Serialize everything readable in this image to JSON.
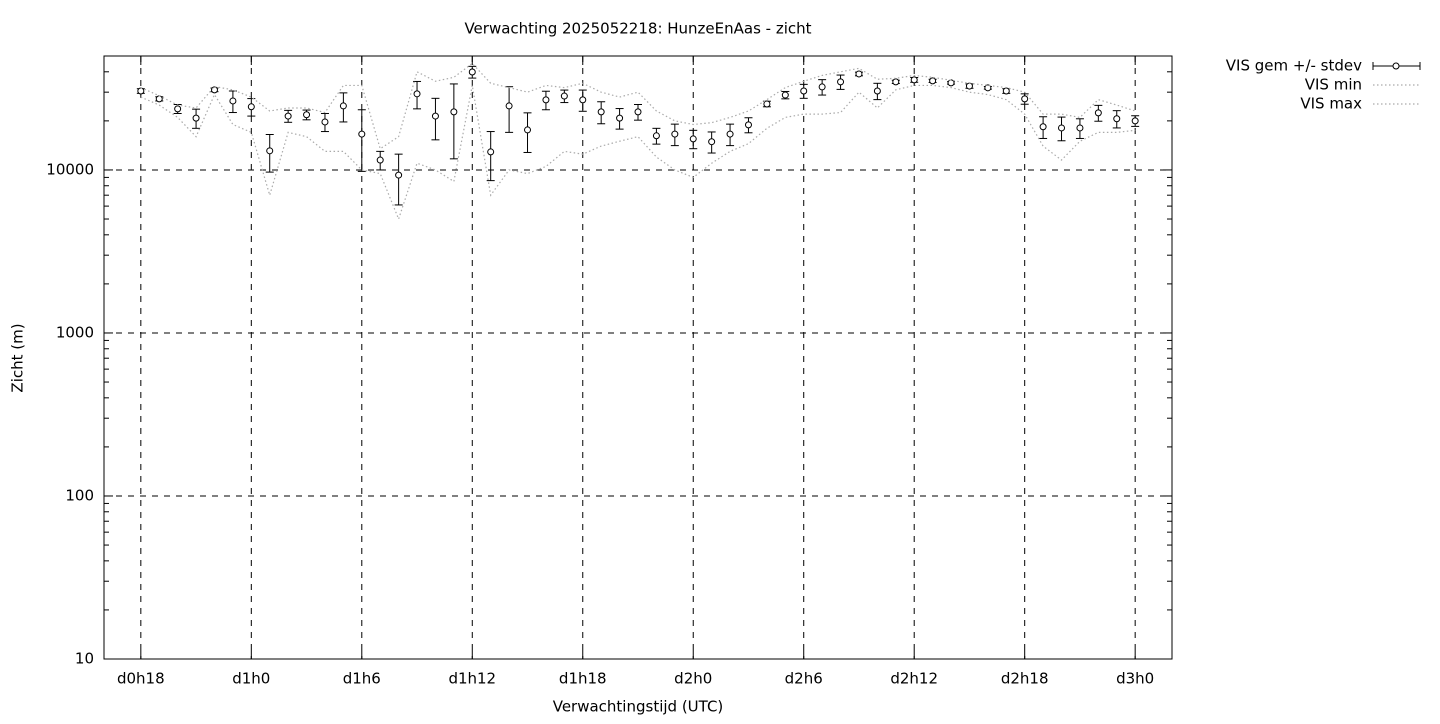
{
  "chart_data": {
    "type": "errorbar-line",
    "title": "Verwachting 2025052218: HunzeEnAas - zicht",
    "xlabel": "Verwachtingstijd (UTC)",
    "ylabel": "Zicht (m)",
    "x": [
      18,
      19,
      20,
      21,
      22,
      23,
      24,
      25,
      26,
      27,
      28,
      29,
      30,
      31,
      32,
      33,
      34,
      35,
      36,
      37,
      38,
      39,
      40,
      41,
      42,
      43,
      44,
      45,
      46,
      47,
      48,
      49,
      50,
      51,
      52,
      53,
      54,
      55,
      56,
      57,
      58,
      59,
      60,
      61,
      62,
      63,
      64,
      65,
      66,
      67,
      68,
      69,
      70,
      71,
      72
    ],
    "xlim": [
      16,
      74
    ],
    "xticks": [
      {
        "value": 18,
        "label": "d0h18"
      },
      {
        "value": 24,
        "label": "d1h0"
      },
      {
        "value": 30,
        "label": "d1h6"
      },
      {
        "value": 36,
        "label": "d1h12"
      },
      {
        "value": 42,
        "label": "d1h18"
      },
      {
        "value": 48,
        "label": "d2h0"
      },
      {
        "value": 54,
        "label": "d2h6"
      },
      {
        "value": 60,
        "label": "d2h12"
      },
      {
        "value": 66,
        "label": "d2h18"
      },
      {
        "value": 72,
        "label": "d3h0"
      }
    ],
    "ylim": [
      10,
      50000
    ],
    "yticks": [
      10,
      100,
      1000,
      10000
    ],
    "ylog": true,
    "grid": true,
    "legend": "outside-top-right",
    "series": [
      {
        "name": "VIS gem +/- stdev",
        "color": "#000000",
        "style": "errorbars",
        "values": [
          30500,
          27300,
          23700,
          20800,
          31000,
          26500,
          24400,
          13100,
          21400,
          21800,
          19700,
          24700,
          16600,
          11500,
          9300,
          29300,
          21400,
          22700,
          39900,
          12900,
          24700,
          17600,
          26900,
          28400,
          26900,
          22700,
          20800,
          22700,
          16200,
          16600,
          15500,
          14900,
          16600,
          18900,
          25400,
          28800,
          30500,
          32300,
          34700,
          38800,
          30500,
          34700,
          35700,
          35200,
          34200,
          32700,
          31900,
          30500,
          27300,
          18400,
          18100,
          18100,
          22400,
          20600,
          20000
        ],
        "errors": [
          1000,
          800,
          1500,
          2800,
          800,
          4000,
          3000,
          3400,
          1800,
          1500,
          2500,
          5000,
          6800,
          1500,
          3200,
          5600,
          6100,
          11000,
          3300,
          4300,
          7700,
          4800,
          3500,
          2500,
          4000,
          3500,
          3000,
          2500,
          1800,
          2500,
          2000,
          2200,
          2500,
          2000,
          1000,
          1500,
          3000,
          3500,
          3500,
          1000,
          3500,
          800,
          1200,
          800,
          600,
          1000,
          600,
          1000,
          2000,
          2800,
          3000,
          2500,
          2500,
          2500,
          1500
        ]
      },
      {
        "name": "VIS min",
        "color": "#aaaaaa",
        "style": "dotted",
        "values": [
          28000,
          25000,
          21000,
          16000,
          29000,
          19000,
          17000,
          7000,
          17000,
          16000,
          13000,
          13000,
          10000,
          9500,
          5000,
          11000,
          10000,
          8500,
          33000,
          7000,
          10000,
          9500,
          10500,
          13000,
          12500,
          14000,
          15000,
          16000,
          12000,
          10000,
          9000,
          11000,
          13000,
          14500,
          18000,
          21000,
          22000,
          22000,
          22500,
          30000,
          24000,
          31000,
          33000,
          33000,
          32000,
          30000,
          29000,
          27000,
          22000,
          14000,
          11500,
          15000,
          17000,
          17000,
          17500
        ]
      },
      {
        "name": "VIS max",
        "color": "#aaaaaa",
        "style": "dotted",
        "values": [
          32000,
          28500,
          25000,
          24000,
          32500,
          31000,
          28000,
          23000,
          24000,
          24000,
          22500,
          33000,
          33000,
          13500,
          16000,
          40000,
          35000,
          37000,
          45000,
          34000,
          32000,
          30000,
          33000,
          32000,
          34000,
          30000,
          28000,
          30000,
          23000,
          20000,
          19000,
          19500,
          21000,
          23000,
          27000,
          32000,
          35000,
          38000,
          40000,
          42000,
          36000,
          36500,
          38000,
          37000,
          35500,
          34000,
          33000,
          32000,
          30000,
          22000,
          22000,
          21000,
          27000,
          25000,
          23000
        ]
      }
    ]
  }
}
